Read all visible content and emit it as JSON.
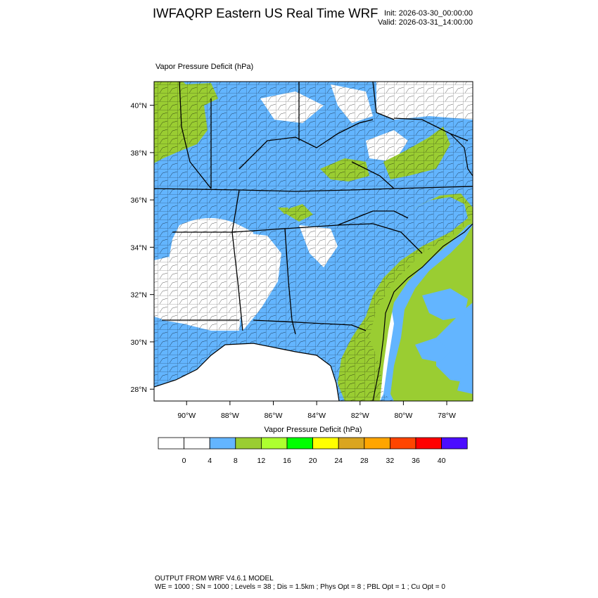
{
  "header": {
    "title": "IWFAQRP Eastern US Real Time WRF",
    "init": "Init: 2026-03-30_00:00:00",
    "valid": "Valid: 2026-03-31_14:00:00"
  },
  "map": {
    "field_label": "Vapor Pressure Deficit   (hPa)",
    "lon_range": [
      -91.5,
      -76.8
    ],
    "lat_range": [
      27.5,
      41.0
    ],
    "lon_ticks": [
      {
        "value": -90,
        "label": "90°W"
      },
      {
        "value": -88,
        "label": "88°W"
      },
      {
        "value": -86,
        "label": "86°W"
      },
      {
        "value": -84,
        "label": "84°W"
      },
      {
        "value": -82,
        "label": "82°W"
      },
      {
        "value": -80,
        "label": "80°W"
      },
      {
        "value": -78,
        "label": "78°W"
      }
    ],
    "lat_ticks": [
      {
        "value": 40,
        "label": "40°N"
      },
      {
        "value": 38,
        "label": "38°N"
      },
      {
        "value": 36,
        "label": "36°N"
      },
      {
        "value": 34,
        "label": "34°N"
      },
      {
        "value": 32,
        "label": "32°N"
      },
      {
        "value": 30,
        "label": "30°N"
      },
      {
        "value": 28,
        "label": "28°N"
      }
    ]
  },
  "colorbar": {
    "title": "Vapor Pressure Deficit  (hPa)",
    "colors": [
      "#ffffff",
      "#ffffff",
      "#63b5ff",
      "#9acd32",
      "#adff2f",
      "#00ff00",
      "#ffff00",
      "#daa520",
      "#ffa500",
      "#ff4500",
      "#ff0000",
      "#4b0dff"
    ],
    "labels": [
      "0",
      "4",
      "8",
      "12",
      "16",
      "20",
      "24",
      "28",
      "32",
      "36",
      "40"
    ]
  },
  "footer": {
    "line1": "OUTPUT FROM WRF V4.6.1 MODEL",
    "line2": "WE = 1000 ; SN = 1000 ; Levels = 38 ; Dis = 1.5km ; Phys Opt = 8 ; PBL Opt = 1 ; Cu Opt = 0"
  },
  "colors": {
    "vpd_0_4": "#ffffff",
    "vpd_4_8": "#63b5ff",
    "vpd_8_12": "#9acd32"
  }
}
